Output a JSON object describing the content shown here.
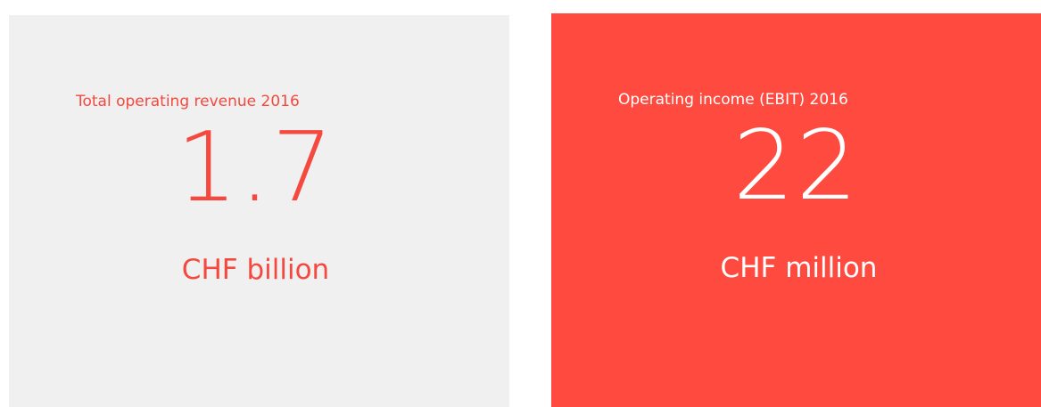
{
  "cards": [
    {
      "label": "Total operating revenue 2016",
      "value": 1.7,
      "unit": "CHF billion"
    },
    {
      "label": "Operating income (EBIT) 2016",
      "value": 22,
      "unit": "CHF million"
    }
  ]
}
